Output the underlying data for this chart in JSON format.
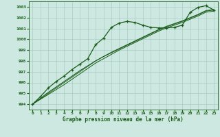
{
  "title": "Graphe pression niveau de la mer (hPa)",
  "bg_color": "#cce8e0",
  "grid_color": "#aaccc4",
  "line_color": "#1a5c1a",
  "xlim": [
    -0.5,
    23.5
  ],
  "ylim": [
    993.5,
    1003.5
  ],
  "xticks": [
    0,
    1,
    2,
    3,
    4,
    5,
    6,
    7,
    8,
    9,
    10,
    11,
    12,
    13,
    14,
    15,
    16,
    17,
    18,
    19,
    20,
    21,
    22,
    23
  ],
  "yticks": [
    994,
    995,
    996,
    997,
    998,
    999,
    1000,
    1001,
    1002,
    1003
  ],
  "main_x": [
    0,
    1,
    2,
    3,
    4,
    5,
    6,
    7,
    8,
    9,
    10,
    11,
    12,
    13,
    14,
    15,
    16,
    17,
    18,
    19,
    20,
    21,
    22,
    23
  ],
  "main_y": [
    994.0,
    994.7,
    995.5,
    996.1,
    996.6,
    997.2,
    997.7,
    998.2,
    999.5,
    1000.1,
    1001.1,
    1001.5,
    1001.65,
    1001.55,
    1001.3,
    1001.1,
    1001.05,
    1001.05,
    1001.1,
    1001.3,
    1002.5,
    1002.95,
    1003.1,
    1002.7
  ],
  "smooth1_x": [
    0,
    1,
    2,
    3,
    4,
    5,
    6,
    7,
    8,
    9,
    10,
    11,
    12,
    13,
    14,
    15,
    16,
    17,
    18,
    19,
    20,
    21,
    22,
    23
  ],
  "smooth1_y": [
    994.0,
    994.45,
    994.9,
    995.35,
    995.8,
    996.3,
    996.8,
    997.3,
    997.8,
    998.2,
    998.6,
    999.0,
    999.35,
    999.7,
    1000.05,
    1000.4,
    1000.75,
    1001.05,
    1001.3,
    1001.55,
    1001.85,
    1002.15,
    1002.5,
    1002.6
  ],
  "smooth2_x": [
    0,
    1,
    2,
    3,
    4,
    5,
    6,
    7,
    8,
    9,
    10,
    11,
    12,
    13,
    14,
    15,
    16,
    17,
    18,
    19,
    20,
    21,
    22,
    23
  ],
  "smooth2_y": [
    994.0,
    994.5,
    995.0,
    995.5,
    996.0,
    996.5,
    997.0,
    997.5,
    998.0,
    998.4,
    998.8,
    999.15,
    999.5,
    999.85,
    1000.2,
    1000.55,
    1000.9,
    1001.2,
    1001.45,
    1001.7,
    1002.0,
    1002.3,
    1002.65,
    1002.75
  ],
  "smooth3_x": [
    0,
    1,
    2,
    3,
    4,
    5,
    6,
    7,
    8,
    9,
    10,
    11,
    12,
    13,
    14,
    15,
    16,
    17,
    18,
    19,
    20,
    21,
    22,
    23
  ],
  "smooth3_y": [
    994.0,
    994.55,
    995.1,
    995.6,
    996.1,
    996.6,
    997.1,
    997.55,
    998.0,
    998.4,
    998.75,
    999.1,
    999.45,
    999.8,
    1000.15,
    1000.5,
    1000.85,
    1001.15,
    1001.4,
    1001.65,
    1001.95,
    1002.25,
    1002.6,
    1002.7
  ]
}
